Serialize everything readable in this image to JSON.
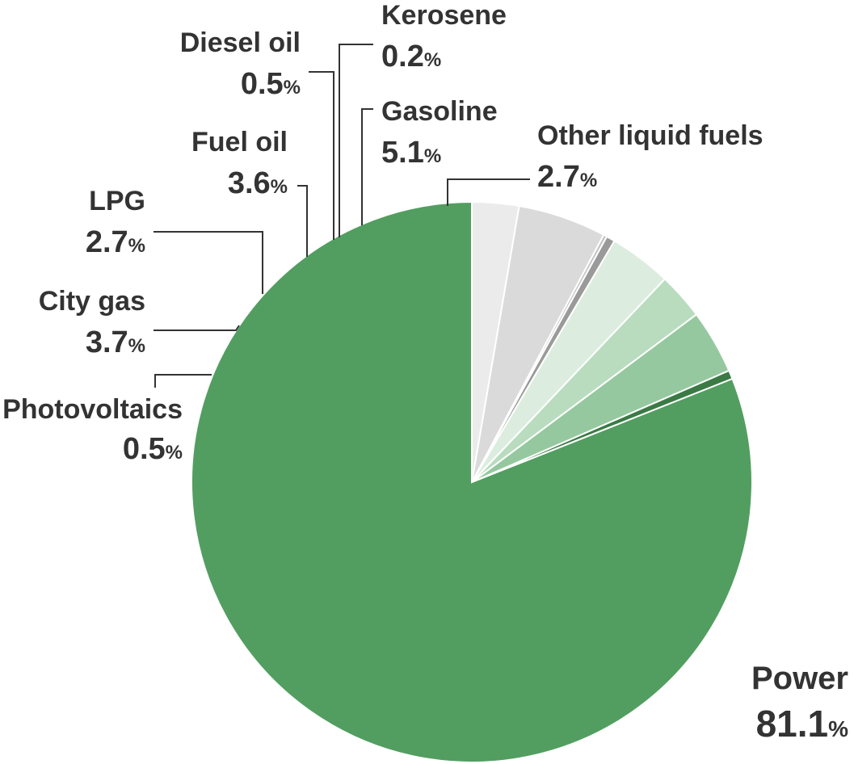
{
  "chart_data": {
    "type": "pie",
    "unit": "%",
    "slices": [
      {
        "label": "Power",
        "value": 81.1,
        "display": "81.1",
        "color": "#529e60"
      },
      {
        "label": "Photovoltaics",
        "value": 0.5,
        "display": "0.5",
        "color": "#3b7a45"
      },
      {
        "label": "City gas",
        "value": 3.7,
        "display": "3.7",
        "color": "#96c89f"
      },
      {
        "label": "LPG",
        "value": 2.7,
        "display": "2.7",
        "color": "#b9dcbf"
      },
      {
        "label": "Fuel oil",
        "value": 3.6,
        "display": "3.6",
        "color": "#dcede0"
      },
      {
        "label": "Diesel oil",
        "value": 0.5,
        "display": "0.5",
        "color": "#9a9a9a"
      },
      {
        "label": "Kerosene",
        "value": 0.2,
        "display": "0.2",
        "color": "#c3c3c3"
      },
      {
        "label": "Gasoline",
        "value": 5.1,
        "display": "5.1",
        "color": "#dadada"
      },
      {
        "label": "Other liquid fuels",
        "value": 2.7,
        "display": "2.7",
        "color": "#ebebeb"
      }
    ],
    "start": "12 o'clock",
    "direction": "clockwise",
    "legend": "none (direct labels with leader lines)"
  }
}
